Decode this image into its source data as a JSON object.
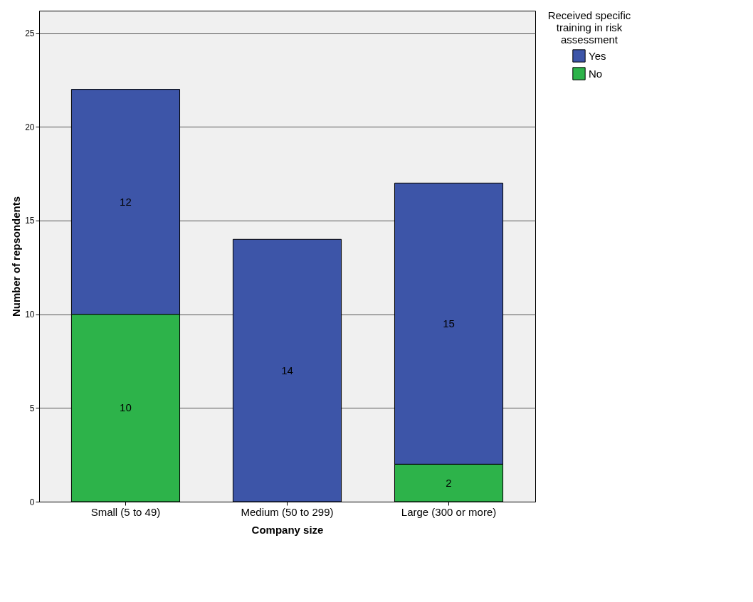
{
  "chart_data": {
    "type": "bar",
    "stacked": true,
    "xlabel": "Company size",
    "ylabel": "Number of repsondents",
    "legend_title": "Received specific training in risk assessment",
    "categories": [
      "Small (5 to 49)",
      "Medium (50 to 299)",
      "Large (300 or more)"
    ],
    "series": [
      {
        "name": "No",
        "color": "#2db34a",
        "values": [
          10,
          0,
          2
        ],
        "value_labels": [
          "10",
          null,
          "2"
        ]
      },
      {
        "name": "Yes",
        "color": "#3d55a8",
        "values": [
          12,
          14,
          15
        ],
        "value_labels": [
          "12",
          "14",
          "15"
        ]
      }
    ],
    "ylim": [
      0,
      26.2
    ],
    "yticks": [
      0,
      5,
      10,
      15,
      20,
      25
    ],
    "grid": "y",
    "legend": "top right"
  }
}
